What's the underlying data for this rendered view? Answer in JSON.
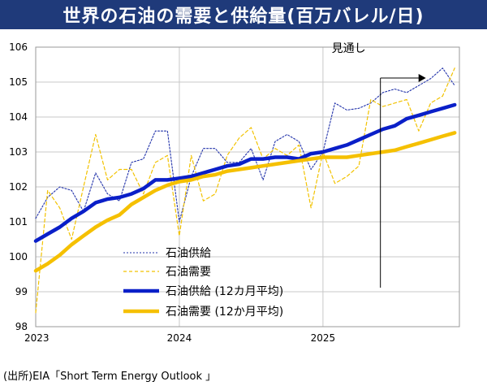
{
  "title": "世界の石油の需要と供給量(百万バレル/日)",
  "source": "(出所)EIA「Short Term Energy Outlook 」",
  "colors": {
    "title_bg": "#1f3a7a",
    "supply_monthly": "#2233aa",
    "demand_monthly": "#f2c200",
    "supply_avg": "#0a1fc8",
    "demand_avg": "#f5c000",
    "grid": "#c8c8c8"
  },
  "chart_data": {
    "type": "line",
    "title": "世界の石油の需要と供給量(百万バレル/日)",
    "xlabel": "",
    "ylabel": "",
    "xlim": [
      2023.0,
      2025.95
    ],
    "ylim": [
      98,
      106
    ],
    "y_ticks": [
      "98",
      "99",
      "100",
      "101",
      "102",
      "103",
      "104",
      "105",
      "106"
    ],
    "x_ticks": [
      {
        "label": "2023",
        "value": 2023.0
      },
      {
        "label": "2024",
        "value": 2024.0
      },
      {
        "label": "2025",
        "value": 2025.0
      }
    ],
    "forecast_annotation": {
      "label": "見通し",
      "x": 2025.4
    },
    "series": [
      {
        "name": "石油供給",
        "style": "dotted",
        "x": [
          2023.0,
          2023.083,
          2023.167,
          2023.25,
          2023.333,
          2023.417,
          2023.5,
          2023.583,
          2023.667,
          2023.75,
          2023.833,
          2023.917,
          2024.0,
          2024.083,
          2024.167,
          2024.25,
          2024.333,
          2024.417,
          2024.5,
          2024.583,
          2024.667,
          2024.75,
          2024.833,
          2024.917,
          2025.0,
          2025.083,
          2025.167,
          2025.25,
          2025.333,
          2025.417,
          2025.5,
          2025.583,
          2025.667,
          2025.75,
          2025.833,
          2025.917
        ],
        "values": [
          101.1,
          101.7,
          102.0,
          101.9,
          101.3,
          102.4,
          101.8,
          101.6,
          102.7,
          102.8,
          103.6,
          103.6,
          101.0,
          102.3,
          103.1,
          103.1,
          102.7,
          102.7,
          103.1,
          102.2,
          103.3,
          103.5,
          103.3,
          102.5,
          103.0,
          104.4,
          104.2,
          104.25,
          104.4,
          104.7,
          104.8,
          104.7,
          104.9,
          105.1,
          105.4,
          104.9
        ]
      },
      {
        "name": "石油需要",
        "style": "dashed",
        "x": [
          2023.0,
          2023.083,
          2023.167,
          2023.25,
          2023.333,
          2023.417,
          2023.5,
          2023.583,
          2023.667,
          2023.75,
          2023.833,
          2023.917,
          2024.0,
          2024.083,
          2024.167,
          2024.25,
          2024.333,
          2024.417,
          2024.5,
          2024.583,
          2024.667,
          2024.75,
          2024.833,
          2024.917,
          2025.0,
          2025.083,
          2025.167,
          2025.25,
          2025.333,
          2025.417,
          2025.5,
          2025.583,
          2025.667,
          2025.75,
          2025.833,
          2025.917
        ],
        "values": [
          98.4,
          101.9,
          101.4,
          100.5,
          102.0,
          103.5,
          102.2,
          102.5,
          102.5,
          101.8,
          102.7,
          102.9,
          100.6,
          102.9,
          101.6,
          101.8,
          102.9,
          103.4,
          103.7,
          102.8,
          103.1,
          102.9,
          103.2,
          101.4,
          103.0,
          102.1,
          102.3,
          102.6,
          104.5,
          104.3,
          104.4,
          104.5,
          103.6,
          104.4,
          104.6,
          105.4
        ]
      },
      {
        "name": "石油供給 (12カ月平均)",
        "style": "solid-thick",
        "x": [
          2023.0,
          2023.083,
          2023.167,
          2023.25,
          2023.333,
          2023.417,
          2023.5,
          2023.583,
          2023.667,
          2023.75,
          2023.833,
          2023.917,
          2024.0,
          2024.083,
          2024.167,
          2024.25,
          2024.333,
          2024.417,
          2024.5,
          2024.583,
          2024.667,
          2024.75,
          2024.833,
          2024.917,
          2025.0,
          2025.083,
          2025.167,
          2025.25,
          2025.333,
          2025.417,
          2025.5,
          2025.583,
          2025.667,
          2025.75,
          2025.833,
          2025.917
        ],
        "values": [
          100.45,
          100.65,
          100.85,
          101.1,
          101.3,
          101.55,
          101.65,
          101.7,
          101.8,
          101.95,
          102.2,
          102.2,
          102.25,
          102.3,
          102.4,
          102.5,
          102.6,
          102.65,
          102.8,
          102.8,
          102.85,
          102.85,
          102.8,
          102.95,
          103.0,
          103.1,
          103.2,
          103.35,
          103.5,
          103.65,
          103.75,
          103.95,
          104.05,
          104.15,
          104.25,
          104.35
        ]
      },
      {
        "name": "石油需要 (12か月平均)",
        "style": "solid-thick",
        "x": [
          2023.0,
          2023.083,
          2023.167,
          2023.25,
          2023.333,
          2023.417,
          2023.5,
          2023.583,
          2023.667,
          2023.75,
          2023.833,
          2023.917,
          2024.0,
          2024.083,
          2024.167,
          2024.25,
          2024.333,
          2024.417,
          2024.5,
          2024.583,
          2024.667,
          2024.75,
          2024.833,
          2024.917,
          2025.0,
          2025.083,
          2025.167,
          2025.25,
          2025.333,
          2025.417,
          2025.5,
          2025.583,
          2025.667,
          2025.75,
          2025.833,
          2025.917
        ],
        "values": [
          99.6,
          99.8,
          100.05,
          100.35,
          100.6,
          100.85,
          101.05,
          101.2,
          101.5,
          101.7,
          101.9,
          102.05,
          102.15,
          102.2,
          102.3,
          102.35,
          102.45,
          102.5,
          102.55,
          102.6,
          102.65,
          102.7,
          102.75,
          102.8,
          102.85,
          102.85,
          102.85,
          102.9,
          102.95,
          103.0,
          103.05,
          103.15,
          103.25,
          103.35,
          103.45,
          103.55
        ]
      }
    ],
    "legend": [
      "石油供給",
      "石油需要",
      "石油供給 (12カ月平均)",
      "石油需要 (12か月平均)"
    ]
  }
}
